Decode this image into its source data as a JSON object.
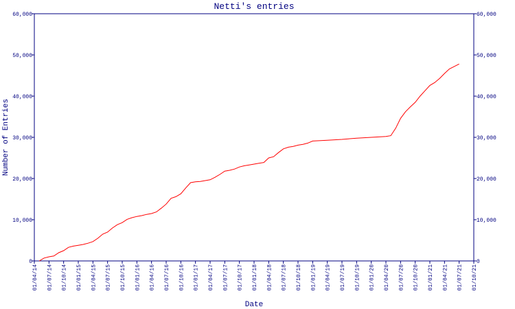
{
  "chart_data": {
    "type": "line",
    "title": "Netti's entries",
    "x_label": "Date",
    "y_label": "Number of Entries",
    "x": [
      "01/05/14",
      "01/06/14",
      "01/07/14",
      "01/08/14",
      "01/09/14",
      "01/10/14",
      "01/11/14",
      "01/12/14",
      "01/01/15",
      "01/02/15",
      "01/03/15",
      "01/04/15",
      "01/05/15",
      "01/06/15",
      "01/07/15",
      "01/08/15",
      "01/09/15",
      "01/10/15",
      "01/11/15",
      "01/12/15",
      "01/01/16",
      "01/02/16",
      "01/03/16",
      "01/04/16",
      "01/05/16",
      "01/06/16",
      "01/07/16",
      "01/08/16",
      "01/09/16",
      "01/10/16",
      "01/11/16",
      "01/12/16",
      "01/01/17",
      "01/02/17",
      "01/03/17",
      "01/04/17",
      "01/05/17",
      "01/06/17",
      "01/07/17",
      "01/08/17",
      "01/09/17",
      "01/10/17",
      "01/11/17",
      "01/12/17",
      "01/01/18",
      "01/02/18",
      "01/03/18",
      "01/04/18",
      "01/05/18",
      "01/06/18",
      "01/07/18",
      "01/08/18",
      "01/09/18",
      "01/10/18",
      "01/11/18",
      "01/12/18",
      "01/01/19",
      "01/04/19",
      "01/07/19",
      "01/10/19",
      "01/01/20",
      "01/04/20",
      "01/05/20",
      "01/06/20",
      "01/07/20",
      "01/08/20",
      "01/09/20",
      "01/10/20",
      "01/11/20",
      "01/12/20",
      "01/01/21",
      "01/02/21",
      "01/03/21",
      "01/04/21",
      "01/05/21",
      "01/06/21",
      "01/07/21"
    ],
    "values": [
      0,
      700,
      1000,
      1200,
      2000,
      2500,
      3300,
      3600,
      3800,
      4000,
      4300,
      4700,
      5500,
      6500,
      7000,
      8000,
      8800,
      9300,
      10100,
      10500,
      10800,
      11000,
      11300,
      11500,
      11900,
      12800,
      13800,
      15200,
      15600,
      16300,
      17700,
      19000,
      19200,
      19300,
      19500,
      19700,
      20300,
      21000,
      21800,
      22000,
      22300,
      22800,
      23100,
      23300,
      23500,
      23700,
      23900,
      25000,
      25300,
      26300,
      27200,
      27600,
      27800,
      28100,
      28300,
      28600,
      29100,
      29300,
      29500,
      29800,
      30000,
      30200,
      30400,
      32200,
      34600,
      36200,
      37400,
      38500,
      40000,
      41300,
      42600,
      43300,
      44300,
      45500,
      46600,
      47200,
      47800
    ],
    "color": "#ff0000",
    "xlim": [
      "01/04/14",
      "01/10/21"
    ],
    "xticks": [
      "01/04/14",
      "01/07/14",
      "01/10/14",
      "01/01/15",
      "01/04/15",
      "01/07/15",
      "01/10/15",
      "01/01/16",
      "01/04/16",
      "01/07/16",
      "01/10/16",
      "01/01/17",
      "01/04/17",
      "01/07/17",
      "01/10/17",
      "01/01/18",
      "01/04/18",
      "01/07/18",
      "01/10/18",
      "01/01/19",
      "01/04/19",
      "01/07/19",
      "01/10/19",
      "01/01/20",
      "01/04/20",
      "01/07/20",
      "01/10/20",
      "01/01/21",
      "01/04/21",
      "01/07/21",
      "01/10/21"
    ],
    "ylim": [
      0,
      60000
    ],
    "yticks": [
      0,
      {
        "value": 10000,
        "label": "10,000"
      },
      {
        "value": 20000,
        "label": "20,000"
      },
      {
        "value": 30000,
        "label": "30,000"
      },
      {
        "value": 40000,
        "label": "40,000"
      },
      {
        "value": 50000,
        "label": "50,000"
      },
      {
        "value": 60000,
        "label": "60,000"
      }
    ]
  }
}
